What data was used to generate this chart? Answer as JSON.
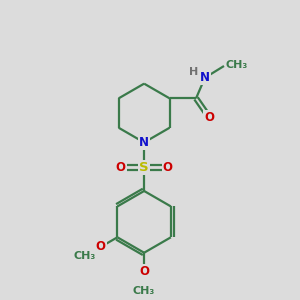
{
  "bg_color": "#dcdcdc",
  "bond_color": "#3a7a4a",
  "N_color": "#1010cc",
  "O_color": "#cc0000",
  "S_color": "#bbbb00",
  "H_color": "#707070",
  "line_width": 1.6,
  "font_size": 8.5,
  "fig_size": [
    3.0,
    3.0
  ],
  "dpi": 100,
  "xlim": [
    0,
    10
  ],
  "ylim": [
    0,
    10
  ]
}
